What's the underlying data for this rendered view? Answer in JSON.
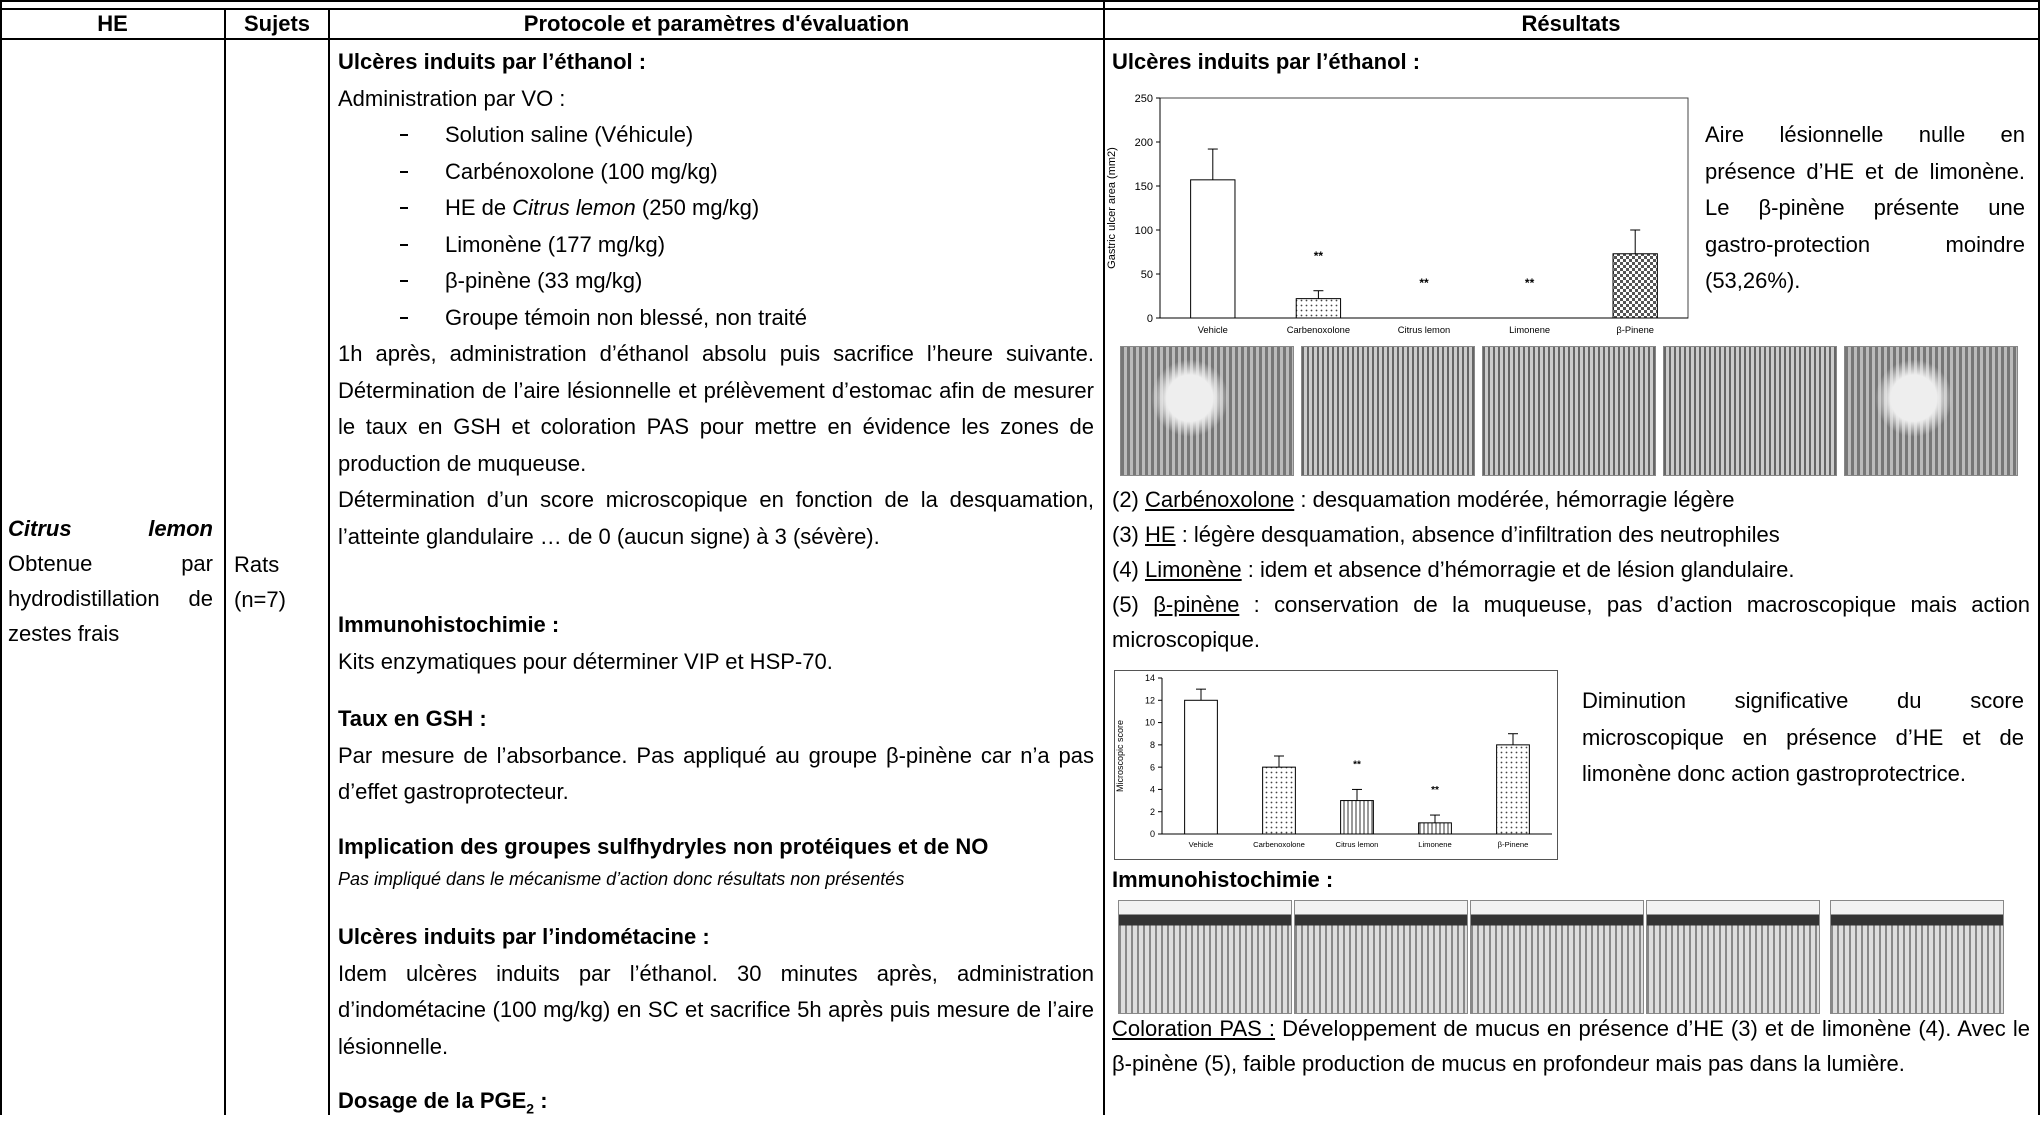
{
  "header": {
    "he": "HE",
    "sujets": "Sujets",
    "protocole": "Protocole et paramètres d'évaluation",
    "resultats": "Résultats"
  },
  "he": {
    "name": "Citrus lemon",
    "description": "Obtenue par hydrodistillation de zestes frais"
  },
  "sujets": {
    "species": "Rats",
    "n": "(n=7)"
  },
  "protocole": {
    "ethanol": {
      "title": "Ulcères induits par l’éthanol :",
      "admin": "Administration par VO :",
      "groups": [
        "Solution saline (Véhicule)",
        "Carbénoxolone (100 mg/kg)",
        [
          "HE de ",
          "Citrus lemon",
          " (250 mg/kg)"
        ],
        "Limonène (177 mg/kg)",
        "β-pinène (33 mg/kg)",
        "Groupe témoin non blessé, non traité"
      ],
      "procedure": "1h après, administration d’éthanol absolu puis sacrifice l’heure suivante. Détermination de l’aire lésionnelle et prélèvement d’estomac afin de mesurer le taux en GSH et coloration PAS pour mettre en évidence les zones de production de muqueuse.",
      "score": "Détermination d’un score microscopique en fonction de la desquamation, l’atteinte glandulaire … de 0 (aucun signe) à 3 (sévère)."
    },
    "immuno": {
      "title": "Immunohistochimie :",
      "text": "Kits enzymatiques pour déterminer VIP et HSP-70."
    },
    "gsh": {
      "title": "Taux en GSH :",
      "text": "Par mesure de l’absorbance. Pas appliqué au groupe β-pinène car n’a pas d’effet gastroprotecteur."
    },
    "implication": {
      "title": "Implication des groupes sulfhydryles non protéiques et de NO",
      "text": "Pas impliqué dans le mécanisme d’action donc résultats non présentés"
    },
    "indometacine": {
      "title": "Ulcères induits par l’indométacine :",
      "text": "Idem ulcères induits par l’éthanol. 30 minutes après, administration d’indométacine (100 mg/kg) en SC et sacrifice 5h après puis mesure de l’aire lésionnelle."
    },
    "pge2": {
      "title": "Dosage de la PGE",
      "subscript": "2",
      "colon": " :"
    }
  },
  "resultats": {
    "ethanol_title": "Ulcères induits par l’éthanol :",
    "area_comment": "Aire lésionnelle nulle en présence d’HE et de limonène. Le β-pinène présente une gastro-protection moindre (53,26%).",
    "histology": [
      {
        "number": "(2)",
        "name": "Carbénoxolone",
        "text": " : desquamation modérée, hémorragie légère"
      },
      {
        "number": "(3)",
        "name": "HE",
        "text": " : légère desquamation, absence d’infiltration des neutrophiles"
      },
      {
        "number": "(4)",
        "name": "Limonène",
        "text": " : idem et absence d’hémorragie et de lésion glandulaire."
      },
      {
        "number": "(5)",
        "name": "β-pinène",
        "text": " : conservation de la muqueuse, pas d’action macroscopique mais action microscopique."
      }
    ],
    "score_comment": "Diminution significative du score microscopique en présence d’HE et de limonène donc action gastroprotectrice.",
    "immuno_title": "Immunohistochimie :",
    "pas": {
      "label": "Coloration PAS :",
      "text": " Développement de mucus en présence d’HE (3) et de limonène (4). Avec le β-pinène (5), faible production de mucus en profondeur mais pas dans la lumière."
    }
  },
  "chart_data": [
    {
      "type": "bar",
      "ylabel": "Gastric ulcer area (mm2)",
      "categories": [
        "Vehicle",
        "Carbenoxolone",
        "Citrus lemon",
        "Limonene",
        "β-Pinene"
      ],
      "values": [
        157,
        22,
        0,
        0,
        73
      ],
      "errors": [
        35,
        9,
        null,
        null,
        27
      ],
      "annotations": [
        null,
        "**",
        "**",
        "**",
        null
      ],
      "patterns": [
        "none",
        "dots",
        "none",
        "none",
        "checks"
      ],
      "ylim": [
        0,
        250
      ],
      "yticks": [
        0,
        50,
        100,
        150,
        200,
        250
      ]
    },
    {
      "type": "bar",
      "ylabel": "Microscopic score",
      "categories": [
        "Vehicle",
        "Carbenoxolone",
        "Citrus lemon",
        "Limonene",
        "β-Pinene"
      ],
      "values": [
        12,
        6,
        3,
        1,
        8
      ],
      "errors": [
        1,
        1,
        1,
        0.7,
        1
      ],
      "annotations": [
        null,
        null,
        "**",
        "**",
        null
      ],
      "patterns": [
        "none",
        "dots",
        "vlines",
        "vlines",
        "dots"
      ],
      "ylim": [
        0,
        14
      ],
      "yticks": [
        0,
        2,
        4,
        6,
        8,
        10,
        12,
        14
      ]
    }
  ]
}
